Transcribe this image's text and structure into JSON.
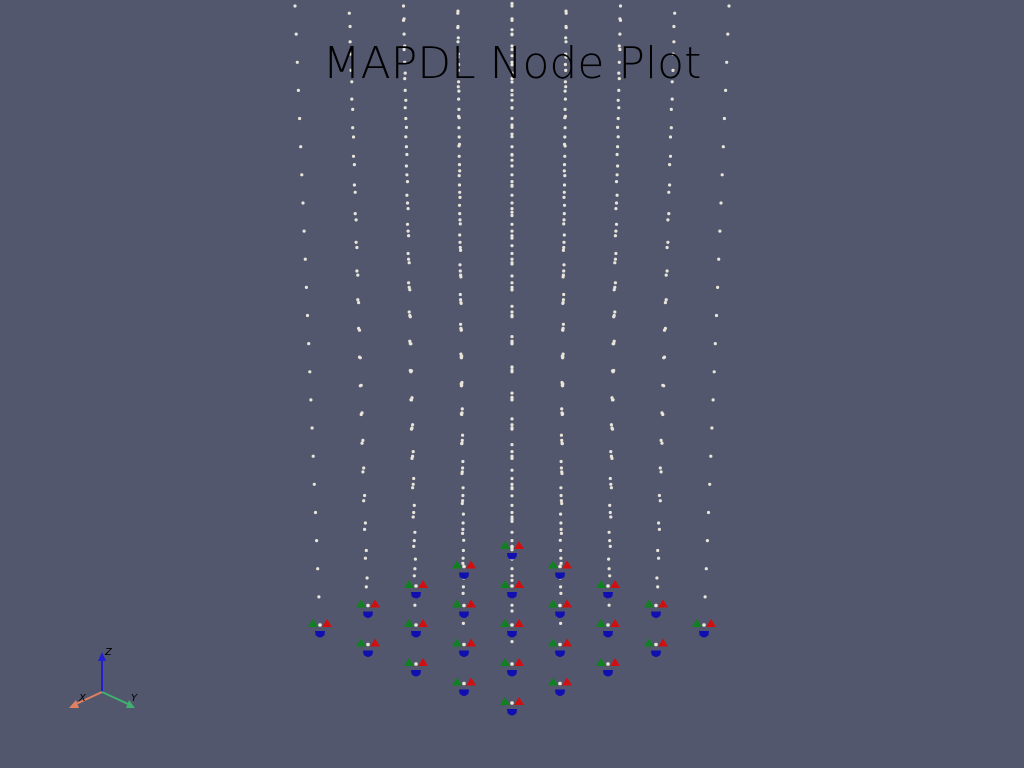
{
  "title": "MAPDL Node Plot",
  "colors": {
    "background": "#52576e",
    "node": "#e8e4d8",
    "bc_x": "#d01010",
    "bc_y": "#108020",
    "bc_z": "#1010b0",
    "axis_x": "#e08060",
    "axis_y": "#40b070",
    "axis_z": "#2020d0"
  },
  "axes": {
    "x_label": "X",
    "y_label": "Y",
    "z_label": "Z"
  },
  "node_icon": "point-marker",
  "constraint_icon": "cone-marker"
}
